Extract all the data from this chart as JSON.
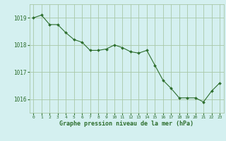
{
  "x": [
    0,
    1,
    2,
    3,
    4,
    5,
    6,
    7,
    8,
    9,
    10,
    11,
    12,
    13,
    14,
    15,
    16,
    17,
    18,
    19,
    20,
    21,
    22,
    23
  ],
  "y": [
    1019.0,
    1019.1,
    1018.75,
    1018.75,
    1018.45,
    1018.2,
    1018.1,
    1017.8,
    1017.8,
    1017.85,
    1018.0,
    1017.9,
    1017.75,
    1017.7,
    1017.8,
    1017.25,
    1016.7,
    1016.4,
    1016.05,
    1016.05,
    1016.05,
    1015.9,
    1016.3,
    1016.6
  ],
  "line_color": "#2d6e2d",
  "marker_color": "#2d6e2d",
  "bg_color": "#d4f0f0",
  "grid_color": "#a8c8a8",
  "text_color": "#2d6e2d",
  "xlabel": "Graphe pression niveau de la mer (hPa)",
  "ylim_min": 1015.5,
  "ylim_max": 1019.5,
  "yticks": [
    1016,
    1017,
    1018,
    1019
  ],
  "xticks": [
    0,
    1,
    2,
    3,
    4,
    5,
    6,
    7,
    8,
    9,
    10,
    11,
    12,
    13,
    14,
    15,
    16,
    17,
    18,
    19,
    20,
    21,
    22,
    23
  ]
}
